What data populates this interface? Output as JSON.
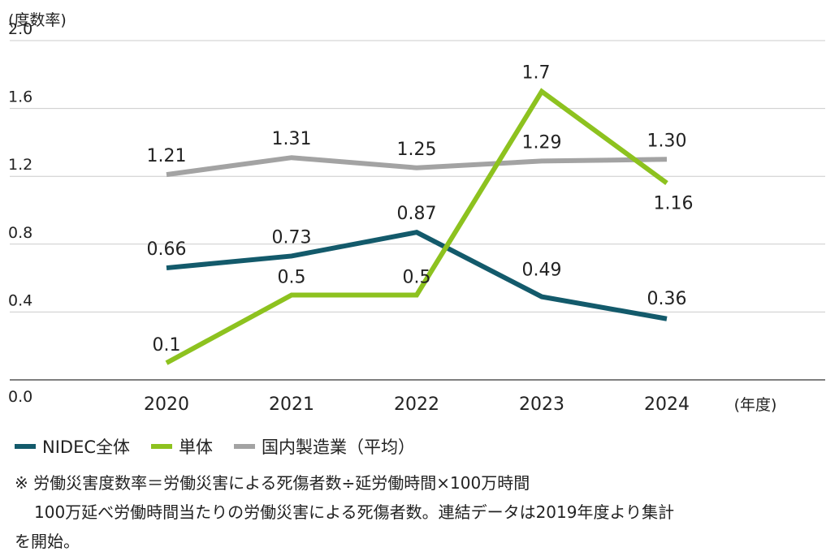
{
  "chart_data": {
    "type": "line",
    "y_unit": "(度数率)",
    "x_unit": "(年度)",
    "categories": [
      "2020",
      "2021",
      "2022",
      "2023",
      "2024"
    ],
    "ylim": [
      0.0,
      2.0
    ],
    "yticks": [
      "0.0",
      "0.4",
      "0.8",
      "1.2",
      "1.6",
      "2.0"
    ],
    "grid": true,
    "series": [
      {
        "name": "NIDEC全体",
        "color": "#135a6b",
        "values": [
          0.66,
          0.73,
          0.87,
          0.49,
          0.36
        ],
        "labels": [
          "0.66",
          "0.73",
          "0.87",
          "0.49",
          "0.36"
        ]
      },
      {
        "name": "単体",
        "color": "#8dc21f",
        "values": [
          0.1,
          0.5,
          0.5,
          1.7,
          1.16
        ],
        "labels": [
          "0.1",
          "0.5",
          "0.5",
          "1.7",
          "1.16"
        ]
      },
      {
        "name": "国内製造業（平均）",
        "color": "#a3a3a3",
        "values": [
          1.21,
          1.31,
          1.25,
          1.29,
          1.3
        ],
        "labels": [
          "1.21",
          "1.31",
          "1.25",
          "1.29",
          "1.30"
        ]
      }
    ]
  },
  "legend": [
    "NIDEC全体",
    "単体",
    "国内製造業（平均）"
  ],
  "notes": {
    "line1": "※ 労働災害度数率＝労働災害による死傷者数÷延労働時間×100万時間",
    "line2": "100万延べ労働時間当たりの労働災害による死傷者数。連結データは2019年度より集計",
    "line3": "を開始。"
  }
}
